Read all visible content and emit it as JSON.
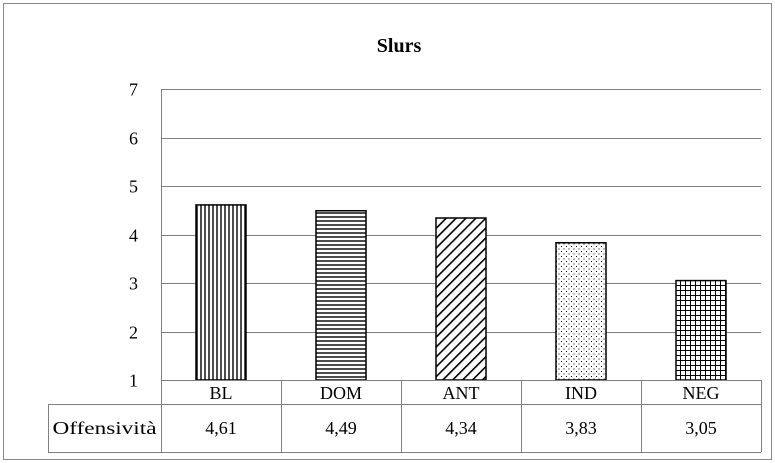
{
  "chart_data": {
    "type": "bar",
    "title": "Slurs",
    "categories": [
      "BL",
      "DOM",
      "ANT",
      "IND",
      "NEG"
    ],
    "series": [
      {
        "name": "Offensività",
        "values": [
          4.61,
          4.49,
          4.34,
          3.83,
          3.05
        ],
        "value_labels": [
          "4,61",
          "4,49",
          "4,34",
          "3,83",
          "3,05"
        ]
      }
    ],
    "bar_patterns": [
      "vertical-lines",
      "horizontal-lines",
      "diagonal-lines",
      "dots",
      "grid"
    ],
    "ylim": [
      1,
      7
    ],
    "yticks": [
      "1",
      "2",
      "3",
      "4",
      "5",
      "6",
      "7"
    ],
    "grid": true,
    "legend": "data-table-below",
    "colors": {
      "bar_fill": "#ffffff",
      "bar_stroke": "#000000",
      "gridline": "#808080"
    }
  }
}
